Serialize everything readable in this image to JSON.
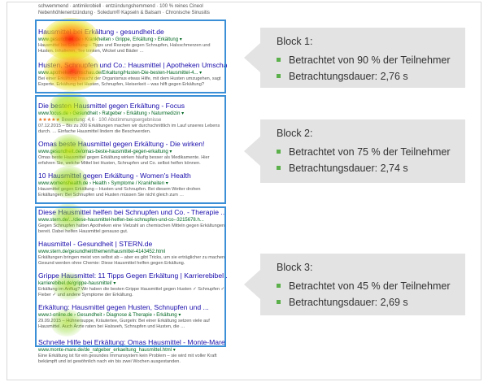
{
  "serp": {
    "top_snippet_1": "schwemmend · antimikrobiell · entzündungshemmend · 100 % reines Cineol",
    "top_snippet_2": "Nebenhöhlenentzündung · Soledum® Kapseln & Balsam · Chronische Sinusitis",
    "results": [
      {
        "title": "Hausmittel bei Erkältung - gesundheit.de",
        "url": "www.gesundheit.de › Krankheiten › Grippe, Erkältung › Erkältung ▾",
        "snippet": "Hausmittel bei Erkältung – Tipps und Rezepte gegen Schnupfen, Halsschmerzen und Husten. Inhalieren, Tee trinken, Wickel und Bäder …"
      },
      {
        "title": "Husten, Schnupfen und Co.: Hausmittel | Apotheken Umschau",
        "url": "www.apotheken-umschau.de/Erkaltung/Husten-Die-besten-Hausmittel-4... ▾",
        "snippet": "Bei einer Erkältung braucht der Organismus etwas Hilfe, mit dem Husten umzugehen, sagt Experte. Erkältung bei Husten, Schnupfen, Heiserkeit – was hilft gegen Erkältung?"
      },
      {
        "title": "Die besten Hausmittel gegen Erkältung - Focus",
        "url": "www.focus.de › Gesundheit › Ratgeber › Erkältung › Naturmedizin ▾",
        "stars": "★★★★★",
        "rating": "Bewertung: 4,6 · 100 Abstimmungsergebnisse",
        "snippet": "07.12.2015 – Bis zu 200 Erkältungen machen wir durchschnittlich im Lauf unseres Lebens durch. … Einfache Hausmittel lindern die Beschwerden."
      },
      {
        "title": "Omas beste Hausmittel gegen Erkältung - Die wirken!",
        "url": "www.gesundheit.de/omas-beste-hausmittel-gegen-erkaltung ▾",
        "snippet": "Omas beste Hausmittel gegen Erkältung wirken häufig besser als Medikamente. Hier erfahren Sie, welche Mittel bei Husten, Schnupfen und Co. selbst helfen können."
      },
      {
        "title": "10 Hausmittel gegen Erkältung - Women's Health",
        "url": "www.womenshealth.de › Health › Symptome / Krankheiten ▾",
        "snippet": "Hausmittel gegen Erkältung – Husten und Schnupfen. Bei diesem Wetter drohen Erkältungen: Bei Schnupfen und Husten müssen Sie nicht gleich zum …"
      },
      {
        "title": "Diese Hausmittel helfen bei Schnupfen und Co. - Therapie ...",
        "url": "www.stern.de/.../diese-hausmittel-helfen-bei-schnupfen-und-co--3215678.h...",
        "snippet": "Gegen Schnupfen hatten Apotheken eine Vielzahl an chemischen Mitteln gegen Erkältungen bereit. Dabei helfen Hausmittel genauso gut."
      },
      {
        "title": "Hausmittel - Gesundheit | STERN.de",
        "url": "www.stern.de/gesundheit/themen/hausmittel-4143452.html",
        "snippet": "Erkältungen bringen meist von selbst ab – aber es gibt Tricks, um sie erträglicher zu machen. Gesund werden ohne Chemie: Diese Hausmittel helfen gegen Erkältung."
      },
      {
        "title": "Grippe Hausmittel: 11 Tipps Gegen Erkältung | Karrierebibel ...",
        "url": "karrierebibel.de/grippe-hausmittel/ ▾",
        "snippet": "Erkältung im Anflug? Wir haben die besten Grippe Hausmittel gegen Husten ✓ Schnupfen ✓ Fieber ✓ und andere Symptome der Erkältung."
      },
      {
        "title": "Erkältung: Hausmittel gegen Husten, Schnupfen und ...",
        "url": "www.t-online.de › Gesundheit › Diagnose & Therapie › Erkältung ▾",
        "snippet": "29.09.2015 – Hühnersuppe, Kräutertee, Gurgeln: Bei einer Erkältung setzen viele auf Hausmittel. Auch Ärzte raten bei Halsweh, Schnupfen und Husten, die …"
      },
      {
        "title": "Schnelle Hilfe bei Erkältung: Omas Hausmittel - Monte-Mare",
        "url": "www.monte-mare.de/de_ratgeber_erkaeltung_hausmittel.html ▾",
        "snippet": "Eine Erkältung ist für ein gesundes Immunsystem kein Problem – sie wird mit voller Kraft bekämpft und ist gewöhnlich nach ein bis zwei Wochen ausgestanden."
      }
    ]
  },
  "blocks": [
    {
      "title": "Block 1:",
      "bullets": [
        "Betrachtet von 90 % der Teilnehmer",
        "Betrachtungsdauer: 2,76 s"
      ]
    },
    {
      "title": "Block 2:",
      "bullets": [
        "Betrachtet von 75 % der Teilnehmer",
        "Betrachtungsdauer: 2,74 s"
      ]
    },
    {
      "title": "Block 3:",
      "bullets": [
        "Betrachtet von 45 % der Teilnehmer",
        "Betrachtungsdauer: 2,69 s"
      ]
    }
  ],
  "colors": {
    "block_border": "#3a8fd6",
    "callout_bg": "#e3e3e3",
    "bullet": "#5bb04b",
    "title_link": "#1a0dab",
    "url_green": "#006621"
  }
}
